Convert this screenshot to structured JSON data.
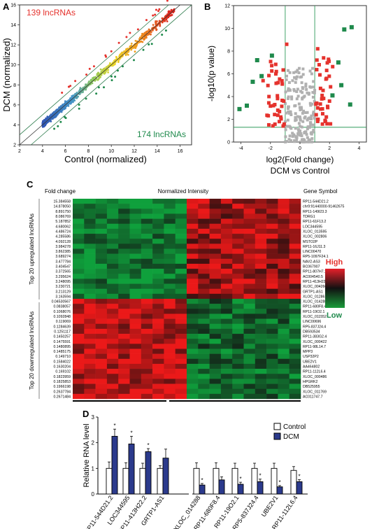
{
  "panels": {
    "a": {
      "letter": "A",
      "label_top": "139 lncRNAs",
      "label_bottom": "174 lncRNAs"
    },
    "b": {
      "letter": "B"
    },
    "c": {
      "letter": "C"
    },
    "d": {
      "letter": "D"
    }
  },
  "colors": {
    "red": "#e5322d",
    "green": "#1f8a4c",
    "navy": "#2b3a8c",
    "gray": "#b0b0b0"
  },
  "chart_data": [
    {
      "panel": "A",
      "type": "scatter",
      "xlabel": "Control (normalized)",
      "ylabel": "DCM (normalized)",
      "xlim": [
        2,
        17
      ],
      "ylim": [
        2,
        16
      ],
      "xticks": [
        2,
        4,
        6,
        8,
        10,
        12,
        14,
        16
      ],
      "yticks": [
        2,
        4,
        6,
        8,
        10,
        12,
        14,
        16
      ],
      "up_count": 139,
      "down_count": 174,
      "notes": "density scatter colored blue (low) to yellow to red (high), diagonal fold-change boundary lines"
    },
    {
      "panel": "B",
      "type": "scatter",
      "title": "DCM vs Control",
      "xlabel": "log2(Fold change)",
      "ylabel": "-log10(p value)",
      "xlim": [
        -4.5,
        4.5
      ],
      "ylim": [
        0,
        12
      ],
      "xticks": [
        -4,
        -2,
        0,
        2,
        4
      ],
      "yticks": [
        0,
        2,
        4,
        6,
        8,
        10,
        12
      ],
      "thresholds": {
        "x": [
          -1,
          1
        ],
        "y": 1.3
      },
      "gray_points": [
        [
          -0.6,
          1.2
        ],
        [
          -0.3,
          2.1
        ],
        [
          0.2,
          1.8
        ],
        [
          0.5,
          2.6
        ],
        [
          -0.8,
          3.1
        ],
        [
          0.7,
          3.4
        ],
        [
          -0.4,
          0.6
        ],
        [
          0.3,
          0.8
        ],
        [
          0.1,
          2.9
        ],
        [
          -0.2,
          3.8
        ],
        [
          0.6,
          4.2
        ],
        [
          -0.7,
          4.6
        ],
        [
          0.4,
          5.1
        ],
        [
          -0.5,
          5.4
        ],
        [
          0.8,
          6.0
        ],
        [
          -0.9,
          5.8
        ],
        [
          0.2,
          4.7
        ],
        [
          -0.1,
          1.1
        ],
        [
          0.9,
          1.5
        ],
        [
          -0.6,
          2.4
        ]
      ],
      "red_points": [
        [
          -1.8,
          3.2
        ],
        [
          -1.5,
          2.8
        ],
        [
          -2.1,
          4.0
        ],
        [
          -1.2,
          5.1
        ],
        [
          -1.6,
          6.2
        ],
        [
          -1.1,
          3.6
        ],
        [
          -2.5,
          5.4
        ],
        [
          -1.3,
          2.2
        ],
        [
          1.2,
          3.0
        ],
        [
          1.5,
          4.1
        ],
        [
          1.8,
          5.6
        ],
        [
          1.1,
          2.4
        ],
        [
          1.3,
          6.8
        ],
        [
          2.0,
          3.6
        ],
        [
          1.6,
          7.4
        ],
        [
          1.4,
          2.9
        ],
        [
          -0.9,
          8.6
        ],
        [
          1.2,
          8.2
        ],
        [
          -1.4,
          1.8
        ],
        [
          1.7,
          1.9
        ]
      ],
      "green_points": [
        [
          -3.2,
          5.3
        ],
        [
          -2.6,
          5.8
        ],
        [
          -3.6,
          3.2
        ],
        [
          -4.1,
          2.9
        ],
        [
          -2.9,
          7.2
        ],
        [
          -1.9,
          7.6
        ],
        [
          3.0,
          9.9
        ],
        [
          3.5,
          10.1
        ],
        [
          2.6,
          7.0
        ],
        [
          2.2,
          4.1
        ],
        [
          3.4,
          3.3
        ],
        [
          2.8,
          5.0
        ]
      ]
    },
    {
      "panel": "C",
      "type": "heatmap",
      "header_left": "Fold change",
      "header_mid": "Normalized Intensity",
      "header_right": "Gene Symbol",
      "group_up": "Top 20 upregulated lncRNAs",
      "group_down": "Top 20 downregulated lncRNAs",
      "legend_high": "High",
      "legend_low": "Low",
      "columns": 20,
      "fold_changes": [
        "15.384558",
        "14.878050",
        "8.891750",
        "8.086769",
        "5.187852",
        "4.680062",
        "4.486724",
        "4.285586",
        "4.092128",
        "3.984278",
        "3.862385",
        "3.689274",
        "3.477784",
        "3.404547",
        "3.372565",
        "3.295624",
        "3.248095",
        "3.230721",
        "3.213129",
        "3.163594",
        "0.04530567",
        "0.0838057",
        "0.1068076",
        "0.1092848",
        "0.119069",
        "0.1284639",
        "0.1251117",
        "0.1450257",
        "0.1475591",
        "0.1480895",
        "0.1485175",
        "0.149710",
        "0.1584022",
        "0.1630204",
        "0.169102",
        "0.1823959",
        "0.1825853",
        "0.1966198",
        "0.2637784",
        "0.2671484"
      ],
      "genes": [
        "RP11-544D21.2",
        "chr9:91440000-91462675",
        "RP11-149I23.3",
        "TDRG1",
        "RP11-61F13.2",
        "LOC344595",
        "XLOC_013595",
        "XLOC_002806",
        "MSTO2P",
        "RP11-16J11.3",
        "LINC00470",
        "RP5-1097F24.1",
        "NAV2-AS3",
        "BC067907",
        "RP11-807H7.1",
        "AC004540.5",
        "RP11-413H22.2",
        "XLOC_004266",
        "GRTP1-AS1",
        "XLOC_012861",
        "XLOC_014288",
        "RP11-680F8.4",
        "RP11-19O2.1",
        "XLOC_011552",
        "LINC00696",
        "RP5-837J24.4",
        "DB593534",
        "RP11-383G2.4",
        "XLOC_000422",
        "RP11-98L14.7",
        "MPP3",
        "USP32P2",
        "UBE2V1",
        "AA464802",
        "RP11-112L6.4",
        "XLOC_000486",
        "HPGRK2",
        "DB525955",
        "XLOC_011769",
        "AC011747.7"
      ],
      "up_row_pattern": "control columns 1-10 mostly green, DCM columns 11-20 mostly red",
      "down_row_pattern": "control columns 1-10 mostly red, DCM columns 11-20 mostly green"
    },
    {
      "panel": "D",
      "type": "bar",
      "ylabel": "Relative RNA level",
      "ylim": [
        0,
        3
      ],
      "yticks": [
        0,
        1,
        2,
        3
      ],
      "categories": [
        "RP11-544D21.2",
        "LOC344595",
        "RP11-413H22.2",
        "GRTP1-AS1",
        "XLOC_014288",
        "RP11-680F8.4",
        "RP11-19O2.1",
        "RP5-837J24.4",
        "UBE2V1",
        "RP11-112L6.4"
      ],
      "series": [
        {
          "name": "Control",
          "values": [
            1.0,
            1.0,
            1.0,
            1.0,
            1.0,
            1.0,
            1.0,
            1.0,
            1.0,
            0.92
          ],
          "errors": [
            0.25,
            0.22,
            0.2,
            0.1,
            0.22,
            0.22,
            0.2,
            0.2,
            0.2,
            0.15
          ]
        },
        {
          "name": "DCM",
          "values": [
            2.25,
            1.95,
            1.65,
            1.4,
            0.35,
            0.55,
            0.38,
            0.48,
            0.28,
            0.48
          ],
          "errors": [
            0.28,
            0.3,
            0.12,
            0.35,
            0.06,
            0.12,
            0.08,
            0.1,
            0.05,
            0.08
          ]
        }
      ],
      "significance": [
        "*",
        "*",
        "*",
        "",
        "*",
        "",
        "*",
        "*",
        "*",
        "*"
      ]
    }
  ]
}
